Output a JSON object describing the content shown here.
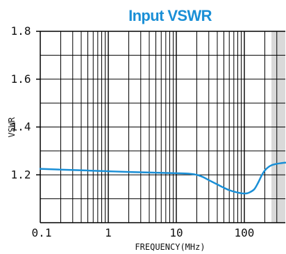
{
  "chart_data": {
    "type": "line",
    "title": "Input VSWR",
    "xlabel": "FREQUENCY(MHz)",
    "ylabel": "VSWR",
    "x_scale": "log",
    "xlim": [
      0.1,
      400
    ],
    "ylim": [
      1.0,
      1.8
    ],
    "x_ticks": [
      {
        "value": 0.1,
        "label": "0.1"
      },
      {
        "value": 1,
        "label": "1"
      },
      {
        "value": 10,
        "label": "10"
      },
      {
        "value": 100,
        "label": "100"
      }
    ],
    "y_ticks": [
      {
        "value": 1.2,
        "label": "1.2"
      },
      {
        "value": 1.4,
        "label": "1.4"
      },
      {
        "value": 1.6,
        "label": "1.6"
      },
      {
        "value": 1.8,
        "label": "1.8"
      }
    ],
    "grid": true,
    "shaded_band_x": [
      250,
      400
    ],
    "colors": {
      "title": "#1a8fd6",
      "line": "#1a8fd6",
      "grid": "#000000",
      "band": "#d9d9d9"
    },
    "series": [
      {
        "x": [
          0.1,
          0.2,
          0.5,
          1,
          2,
          5,
          10,
          15,
          20,
          25,
          30,
          40,
          50,
          60,
          70,
          80,
          90,
          100,
          110,
          120,
          140,
          160,
          180,
          200,
          220,
          250,
          300,
          350,
          400
        ],
        "y": [
          1.225,
          1.222,
          1.218,
          1.215,
          1.212,
          1.209,
          1.207,
          1.205,
          1.2,
          1.19,
          1.178,
          1.16,
          1.146,
          1.136,
          1.13,
          1.126,
          1.123,
          1.122,
          1.123,
          1.127,
          1.14,
          1.168,
          1.198,
          1.218,
          1.23,
          1.24,
          1.246,
          1.249,
          1.251
        ]
      }
    ]
  }
}
